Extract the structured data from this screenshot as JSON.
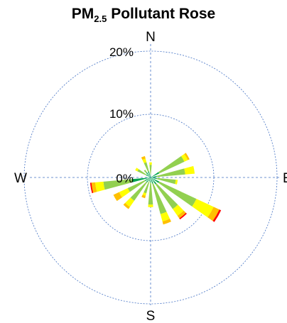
{
  "chart_data": {
    "type": "pollutant-rose",
    "title": {
      "main": "PM",
      "subscript": "2.5",
      "suffix": " Pollutant Rose"
    },
    "compass": {
      "north": "N",
      "east": "E",
      "south": "S",
      "west": "W"
    },
    "radial_axis": {
      "max": 22,
      "rings": [
        {
          "value": 10,
          "label": "10%"
        },
        {
          "value": 20,
          "label": "20%"
        }
      ],
      "zero_label": "0%"
    },
    "grid": true,
    "concentration_band_colors": [
      "#00A550",
      "#92D050",
      "#FFFF00",
      "#FFC000",
      "#FF0000"
    ],
    "directions": [
      {
        "deg": 0,
        "bands": [
          0.5,
          1.5,
          0.4,
          0,
          0
        ]
      },
      {
        "deg": 20,
        "bands": [
          0,
          0,
          0,
          0,
          0
        ]
      },
      {
        "deg": 40,
        "bands": [
          0,
          0,
          0,
          0,
          0
        ]
      },
      {
        "deg": 60,
        "bands": [
          1.5,
          4.4,
          0.6,
          0.3,
          0
        ]
      },
      {
        "deg": 80,
        "bands": [
          1,
          4.5,
          1.5,
          0,
          0
        ]
      },
      {
        "deg": 100,
        "bands": [
          1,
          3,
          0.3,
          0,
          0
        ]
      },
      {
        "deg": 120,
        "bands": [
          1.5,
          6.5,
          3,
          1,
          0.3
        ]
      },
      {
        "deg": 140,
        "bands": [
          1.3,
          4.8,
          1.3,
          0.5,
          0.2
        ]
      },
      {
        "deg": 160,
        "bands": [
          1,
          5,
          1.2,
          0.5,
          0
        ]
      },
      {
        "deg": 180,
        "bands": [
          0.8,
          3.5,
          0.4,
          0,
          0
        ]
      },
      {
        "deg": 200,
        "bands": [
          0.6,
          2,
          0.4,
          0.4,
          0
        ]
      },
      {
        "deg": 220,
        "bands": [
          1,
          3.5,
          1.2,
          0.4,
          0
        ]
      },
      {
        "deg": 240,
        "bands": [
          1,
          3,
          1.5,
          1,
          0
        ]
      },
      {
        "deg": 260,
        "bands": [
          3,
          4.5,
          1.3,
          0.6,
          0.2
        ]
      },
      {
        "deg": 280,
        "bands": [
          0,
          0,
          0,
          0,
          0
        ]
      },
      {
        "deg": 300,
        "bands": [
          0.8,
          1.5,
          0.4,
          0,
          0
        ]
      },
      {
        "deg": 320,
        "bands": [
          1,
          0.5,
          0,
          0,
          0
        ]
      },
      {
        "deg": 340,
        "bands": [
          1,
          1.5,
          0.6,
          0.4,
          0
        ]
      }
    ],
    "petal_width_deg": 10
  }
}
